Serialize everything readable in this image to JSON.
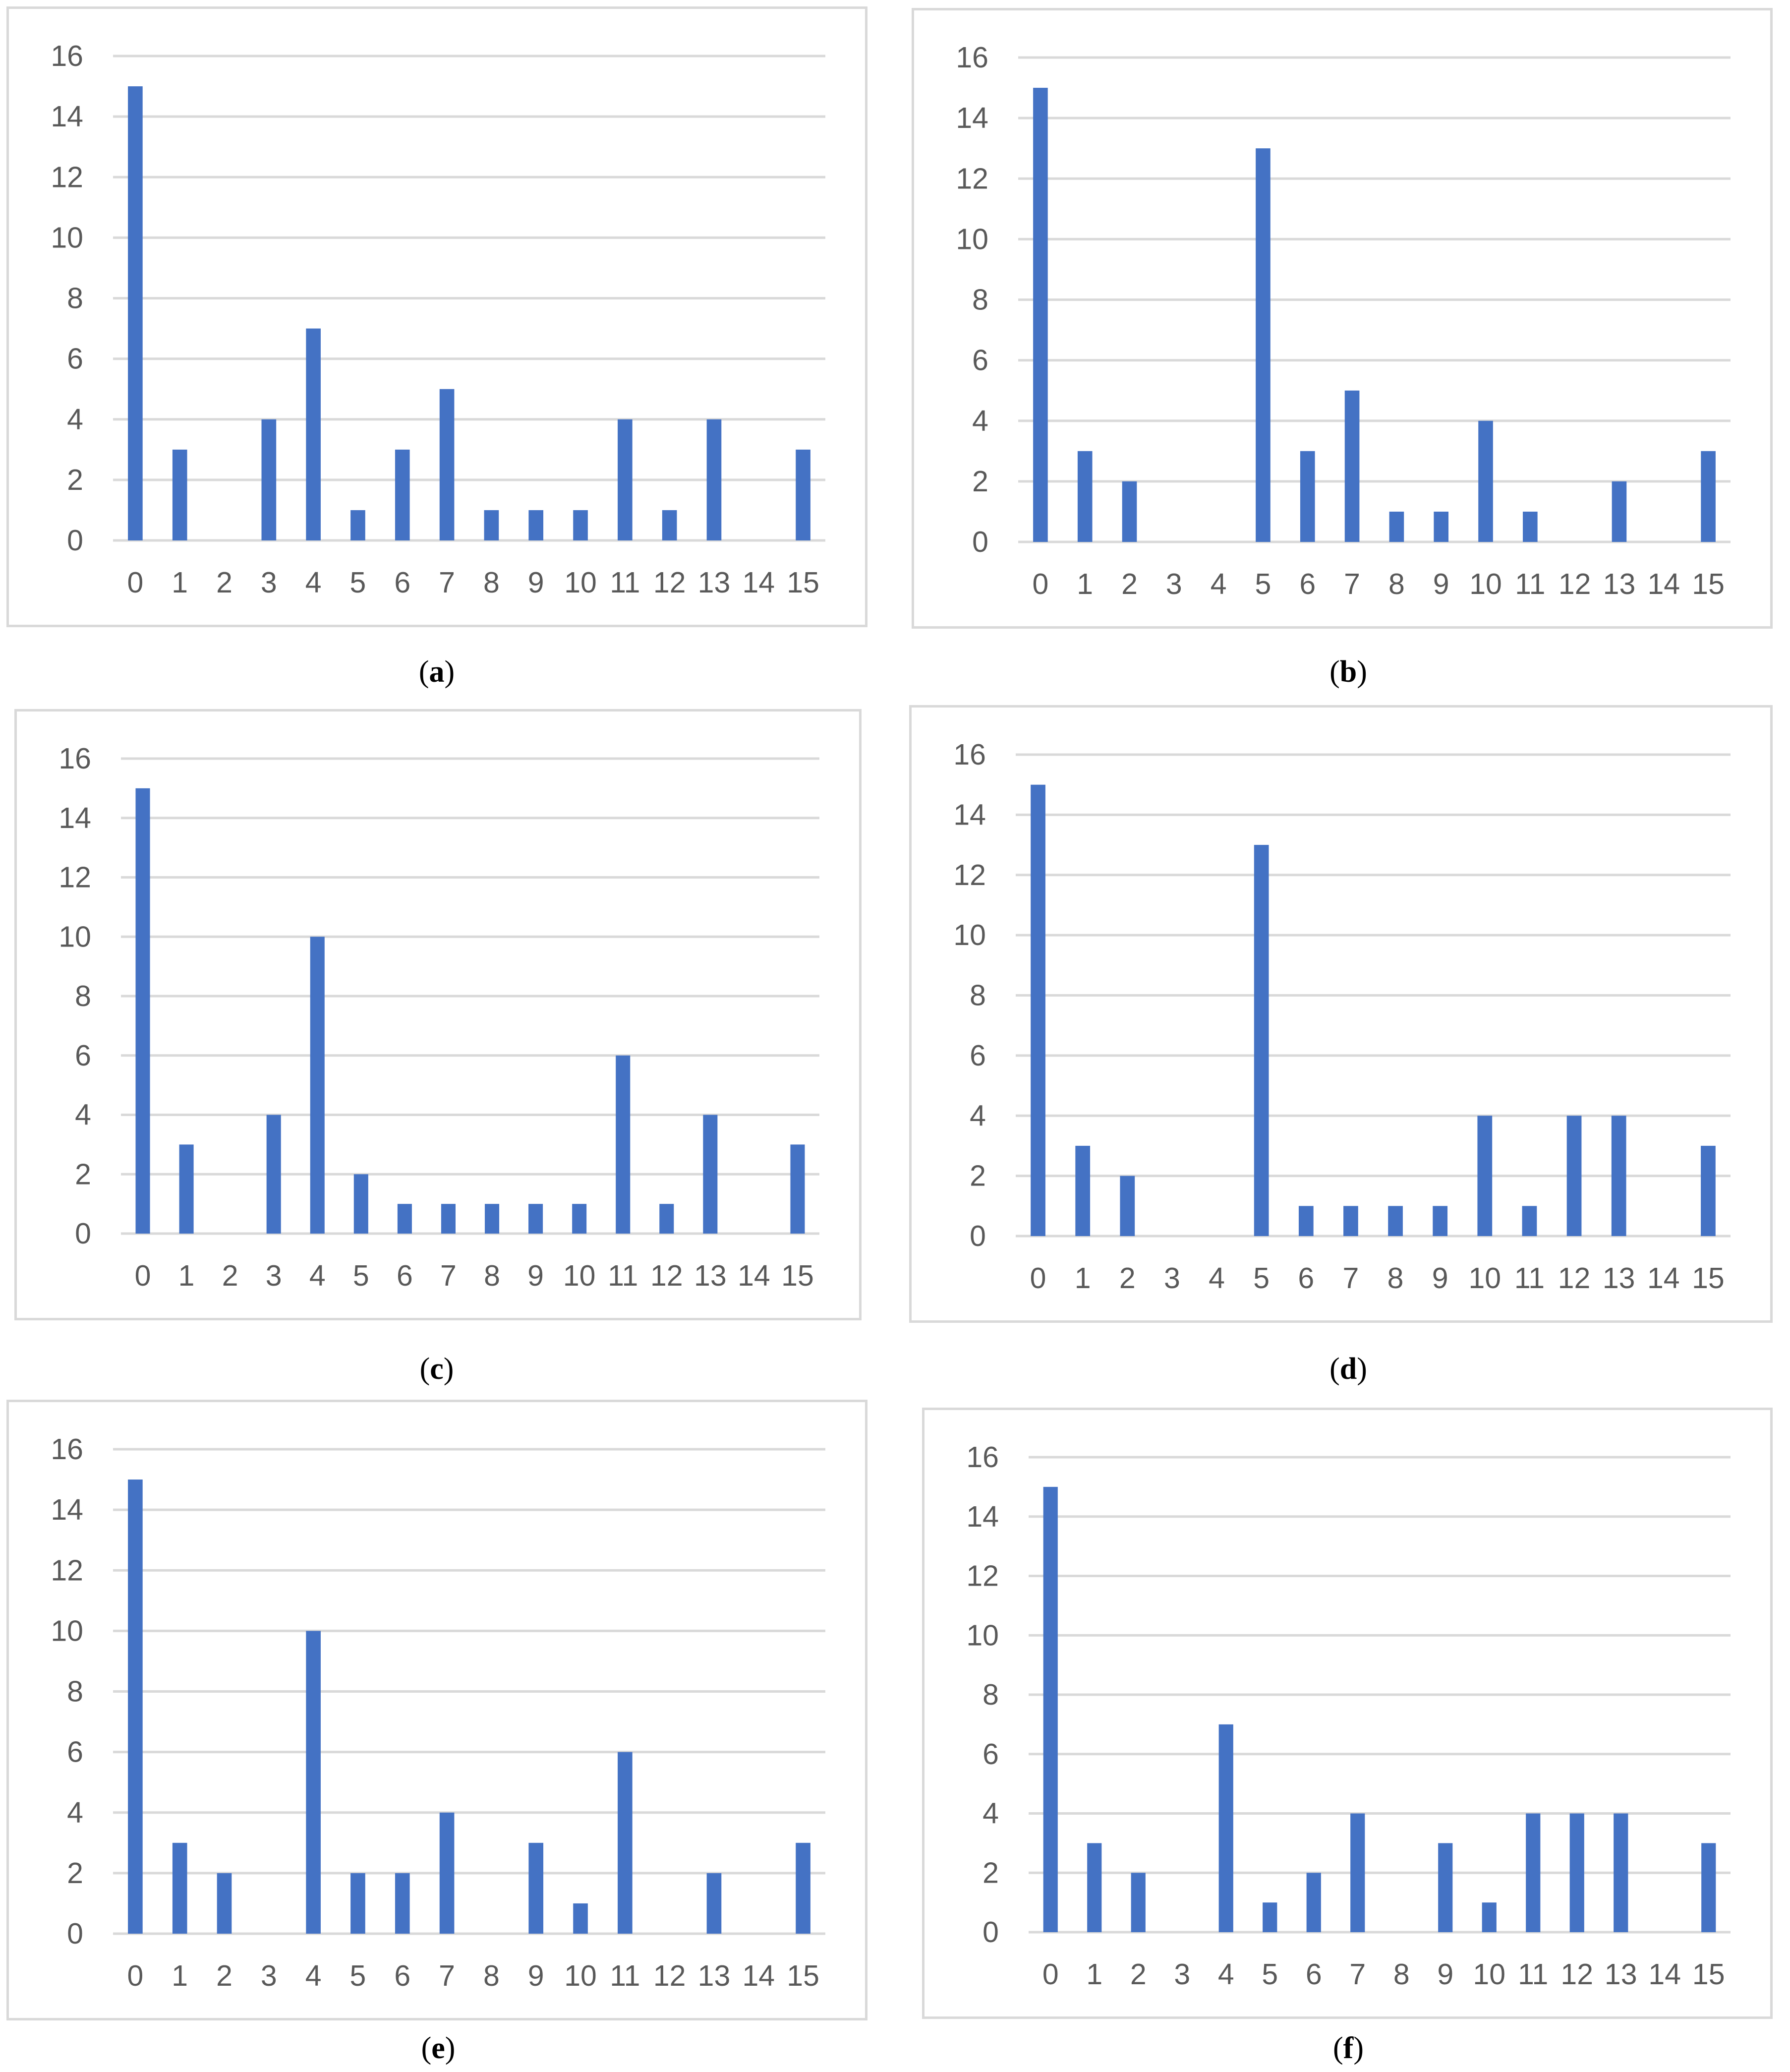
{
  "style": {
    "bar_color": "#4472c4",
    "grid_color": "#d9d9d9",
    "label_color": "#595959",
    "border_color": "#d9d9d9"
  },
  "chart_data": [
    {
      "type": "bar",
      "panel": "a",
      "categories": [
        "0",
        "1",
        "2",
        "3",
        "4",
        "5",
        "6",
        "7",
        "8",
        "9",
        "10",
        "11",
        "12",
        "13",
        "14",
        "15"
      ],
      "values": [
        15,
        3,
        0,
        4,
        7,
        1,
        3,
        5,
        1,
        1,
        1,
        4,
        1,
        4,
        0,
        3
      ],
      "yticks": [
        0,
        2,
        4,
        6,
        8,
        10,
        12,
        14,
        16
      ],
      "ylim": [
        0,
        16
      ],
      "grid": true,
      "legend": "none"
    },
    {
      "type": "bar",
      "panel": "b",
      "categories": [
        "0",
        "1",
        "2",
        "3",
        "4",
        "5",
        "6",
        "7",
        "8",
        "9",
        "10",
        "11",
        "12",
        "13",
        "14",
        "15"
      ],
      "values": [
        15,
        3,
        2,
        0,
        0,
        13,
        3,
        5,
        1,
        1,
        4,
        1,
        0,
        2,
        0,
        3
      ],
      "yticks": [
        0,
        2,
        4,
        6,
        8,
        10,
        12,
        14,
        16
      ],
      "ylim": [
        0,
        16
      ],
      "grid": true,
      "legend": "none"
    },
    {
      "type": "bar",
      "panel": "c",
      "categories": [
        "0",
        "1",
        "2",
        "3",
        "4",
        "5",
        "6",
        "7",
        "8",
        "9",
        "10",
        "11",
        "12",
        "13",
        "14",
        "15"
      ],
      "values": [
        15,
        3,
        0,
        4,
        10,
        2,
        1,
        1,
        1,
        1,
        1,
        6,
        1,
        4,
        0,
        3
      ],
      "yticks": [
        0,
        2,
        4,
        6,
        8,
        10,
        12,
        14,
        16
      ],
      "ylim": [
        0,
        16
      ],
      "grid": true,
      "legend": "none"
    },
    {
      "type": "bar",
      "panel": "d",
      "categories": [
        "0",
        "1",
        "2",
        "3",
        "4",
        "5",
        "6",
        "7",
        "8",
        "9",
        "10",
        "11",
        "12",
        "13",
        "14",
        "15"
      ],
      "values": [
        15,
        3,
        2,
        0,
        0,
        13,
        1,
        1,
        1,
        1,
        4,
        1,
        4,
        4,
        0,
        3
      ],
      "yticks": [
        0,
        2,
        4,
        6,
        8,
        10,
        12,
        14,
        16
      ],
      "ylim": [
        0,
        16
      ],
      "grid": true,
      "legend": "none"
    },
    {
      "type": "bar",
      "panel": "e",
      "categories": [
        "0",
        "1",
        "2",
        "3",
        "4",
        "5",
        "6",
        "7",
        "8",
        "9",
        "10",
        "11",
        "12",
        "13",
        "14",
        "15"
      ],
      "values": [
        15,
        3,
        2,
        0,
        10,
        2,
        2,
        4,
        0,
        3,
        1,
        6,
        0,
        2,
        0,
        3
      ],
      "yticks": [
        0,
        2,
        4,
        6,
        8,
        10,
        12,
        14,
        16
      ],
      "ylim": [
        0,
        16
      ],
      "grid": true,
      "legend": "none"
    },
    {
      "type": "bar",
      "panel": "f",
      "categories": [
        "0",
        "1",
        "2",
        "3",
        "4",
        "5",
        "6",
        "7",
        "8",
        "9",
        "10",
        "11",
        "12",
        "13",
        "14",
        "15"
      ],
      "values": [
        15,
        3,
        2,
        0,
        7,
        1,
        2,
        4,
        0,
        3,
        1,
        4,
        4,
        4,
        0,
        3
      ],
      "yticks": [
        0,
        2,
        4,
        6,
        8,
        10,
        12,
        14,
        16
      ],
      "ylim": [
        0,
        16
      ],
      "grid": true,
      "legend": "none"
    }
  ],
  "captions": [
    {
      "open": "(",
      "letter": "a",
      "close": ")"
    },
    {
      "open": "(",
      "letter": "b",
      "close": ")"
    },
    {
      "open": "(",
      "letter": "c",
      "close": ")"
    },
    {
      "open": "(",
      "letter": "d",
      "close": ")"
    },
    {
      "open": "(",
      "letter": "e",
      "close": ")"
    },
    {
      "open": "(",
      "letter": "f",
      "close": ")"
    }
  ]
}
